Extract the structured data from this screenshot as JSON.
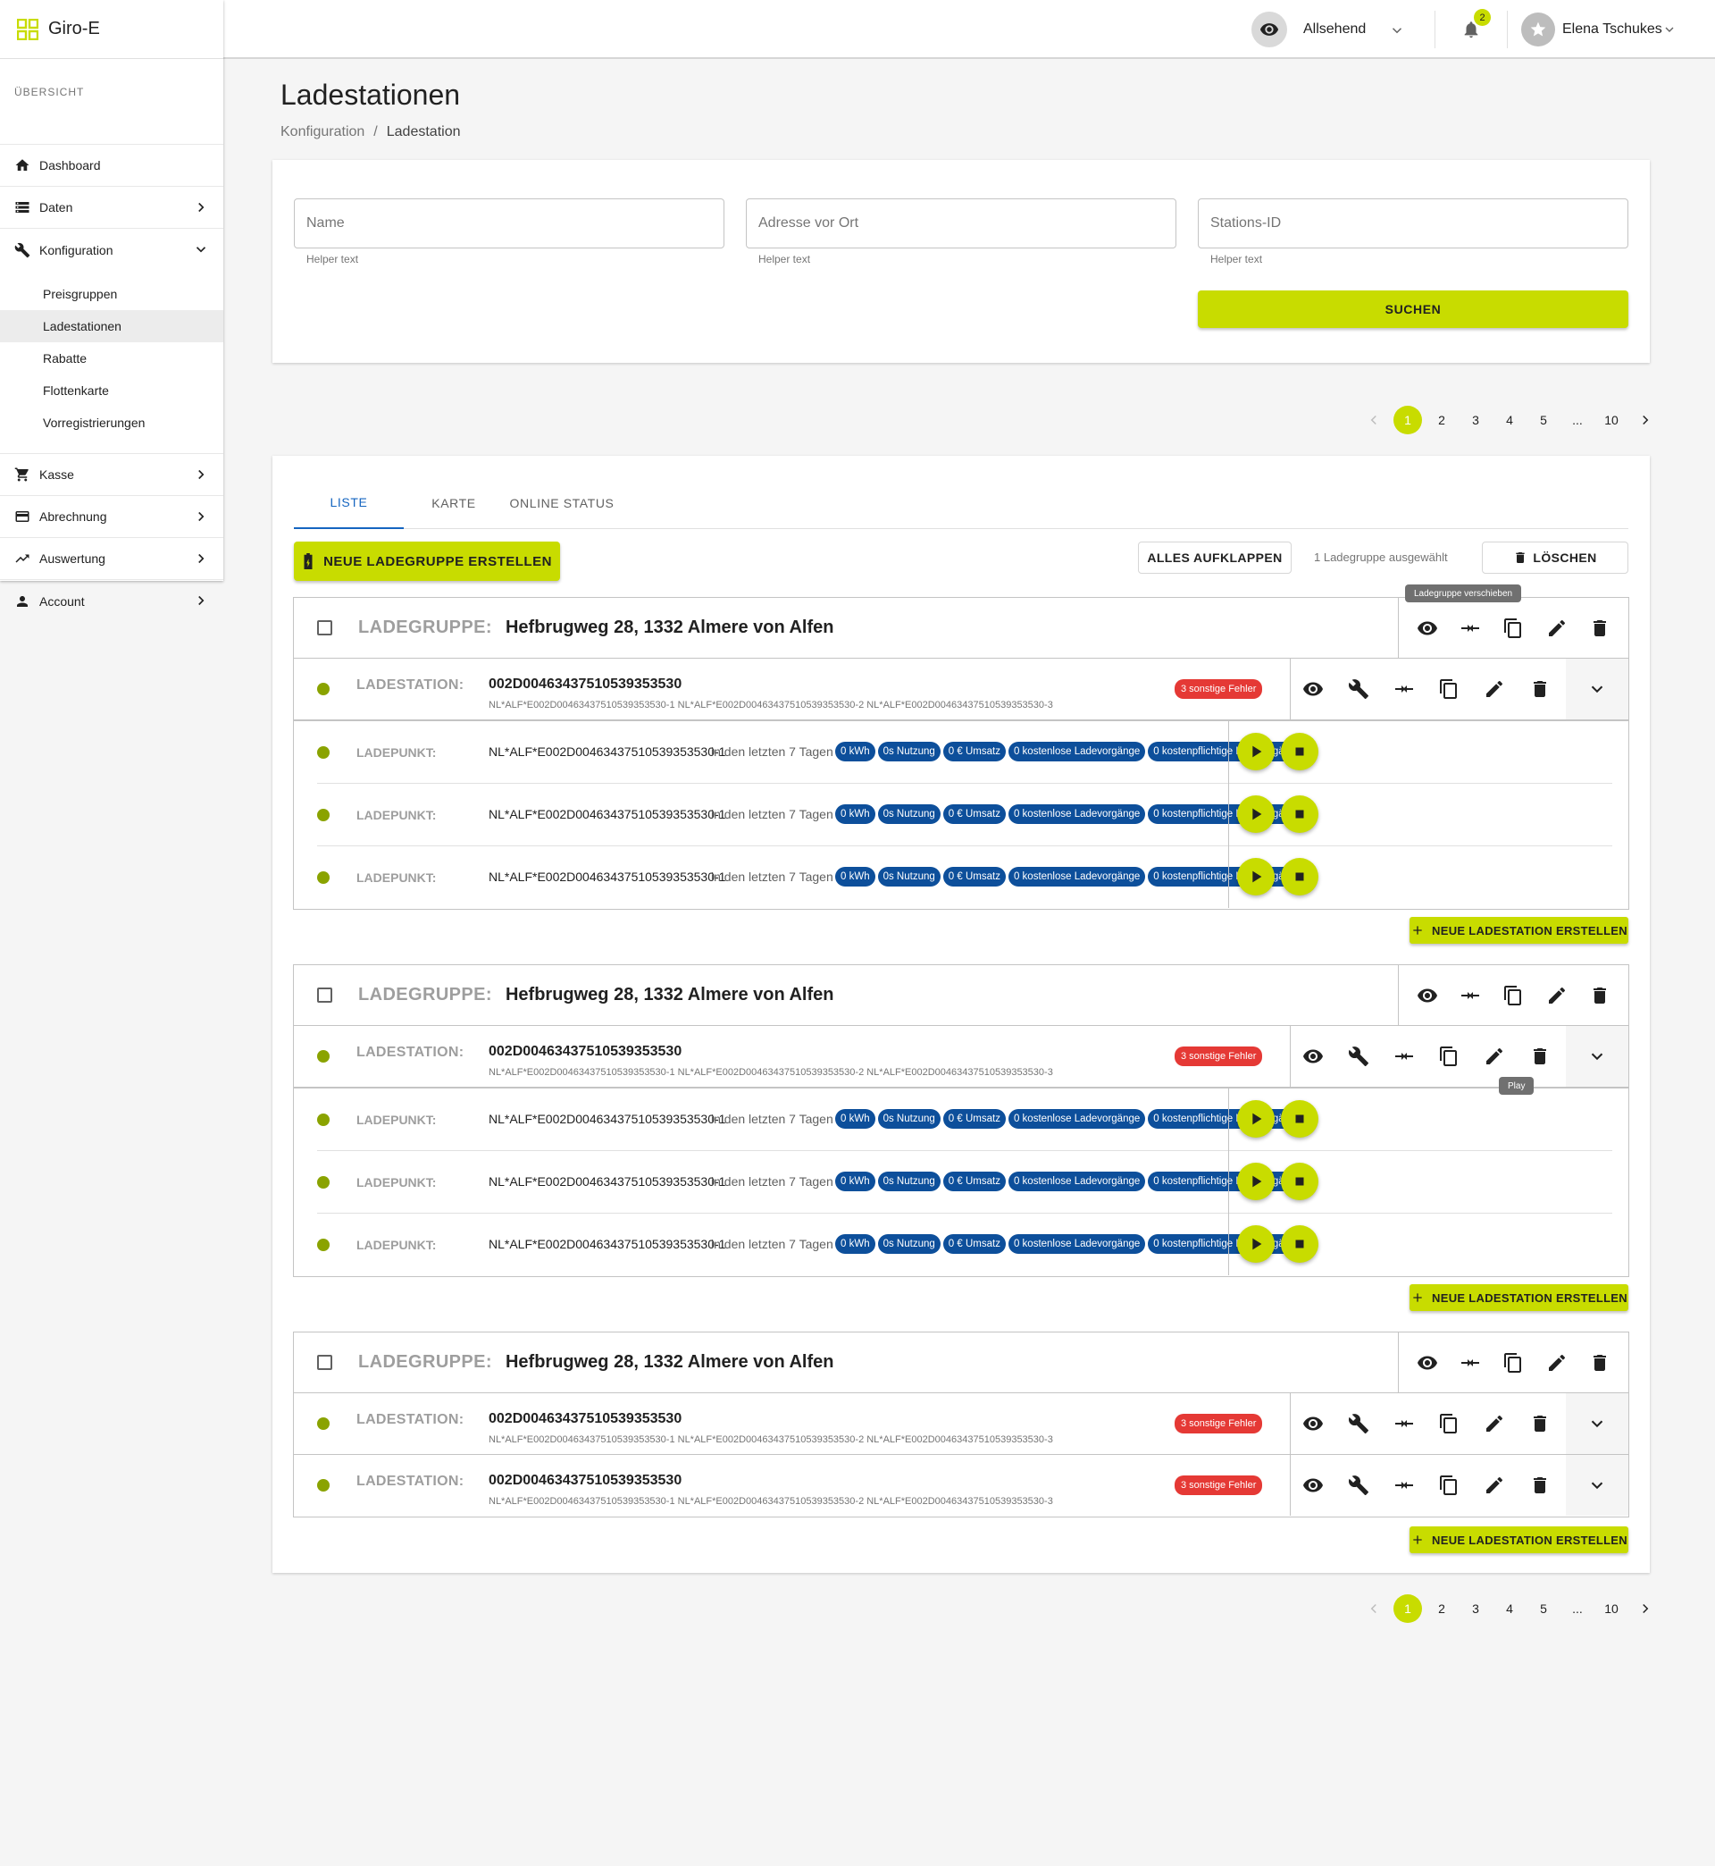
{
  "app": {
    "name": "Giro-E"
  },
  "sidebar": {
    "section": "ÜBERSICHT",
    "items": [
      {
        "label": "Dashboard"
      },
      {
        "label": "Daten"
      },
      {
        "label": "Konfiguration"
      },
      {
        "label": "Kasse"
      },
      {
        "label": "Abrechnung"
      },
      {
        "label": "Auswertung"
      },
      {
        "label": "Account"
      }
    ],
    "subitems": [
      {
        "label": "Preisgruppen"
      },
      {
        "label": "Ladestationen"
      },
      {
        "label": "Rabatte"
      },
      {
        "label": "Flottenkarte"
      },
      {
        "label": "Vorregistrierungen"
      }
    ]
  },
  "topbar": {
    "view": "Allsehend",
    "notifications": "2",
    "user": "Elena Tschukes"
  },
  "page": {
    "title": "Ladestationen",
    "breadcrumb": [
      "Konfiguration",
      "Ladestation"
    ]
  },
  "filter": {
    "fields": [
      {
        "placeholder": "Name",
        "helper": "Helper text"
      },
      {
        "placeholder": "Adresse vor Ort",
        "helper": "Helper text"
      },
      {
        "placeholder": "Stations-ID",
        "helper": "Helper text"
      }
    ],
    "search": "SUCHEN"
  },
  "pagination": {
    "pages": [
      "1",
      "2",
      "3",
      "4",
      "5",
      "...",
      "10"
    ],
    "current": "1"
  },
  "tabs": [
    "LISTE",
    "KARTE",
    "ONLINE STATUS"
  ],
  "toolbar": {
    "new_group": "NEUE LADEGRUPPE ERSTELLEN",
    "expand_all": "ALLES AUFKLAPPEN",
    "selected": "1 Ladegruppe ausgewählt",
    "delete": "LÖSCHEN"
  },
  "labels": {
    "group": "LADEGRUPPE:",
    "station": "LADESTATION:",
    "point": "LADEPUNKT:",
    "new_station": "NEUE LADESTATION ERSTELLEN",
    "period": "in den letzten 7 Tagen",
    "errors": "3 sonstige Fehler",
    "chips": [
      "0 kWh",
      "0s Nutzung",
      "0 € Umsatz",
      "0 kostenlose Ladevorgänge",
      "0 kostenpflichtige Ladevorgänge"
    ]
  },
  "tooltips": {
    "move": "Ladegruppe verschieben",
    "play": "Play"
  },
  "groups": [
    {
      "address": "Hefbrugweg 28, 1332 Almere von Alfen"
    },
    {
      "address": "Hefbrugweg 28, 1332 Almere von Alfen"
    },
    {
      "address": "Hefbrugweg 28, 1332 Almere von Alfen"
    }
  ],
  "station": {
    "id": "002D00463437510539353530",
    "subids": "NL*ALF*E002D00463437510539353530-1  NL*ALF*E002D00463437510539353530-2   NL*ALF*E002D00463437510539353530-3"
  },
  "point": {
    "id": "NL*ALF*E002D00463437510539353530-1"
  },
  "colors": {
    "accent": "#c8dc00",
    "chip": "#0d4f9b",
    "error": "#e53935",
    "status_online": "#8aa300"
  }
}
